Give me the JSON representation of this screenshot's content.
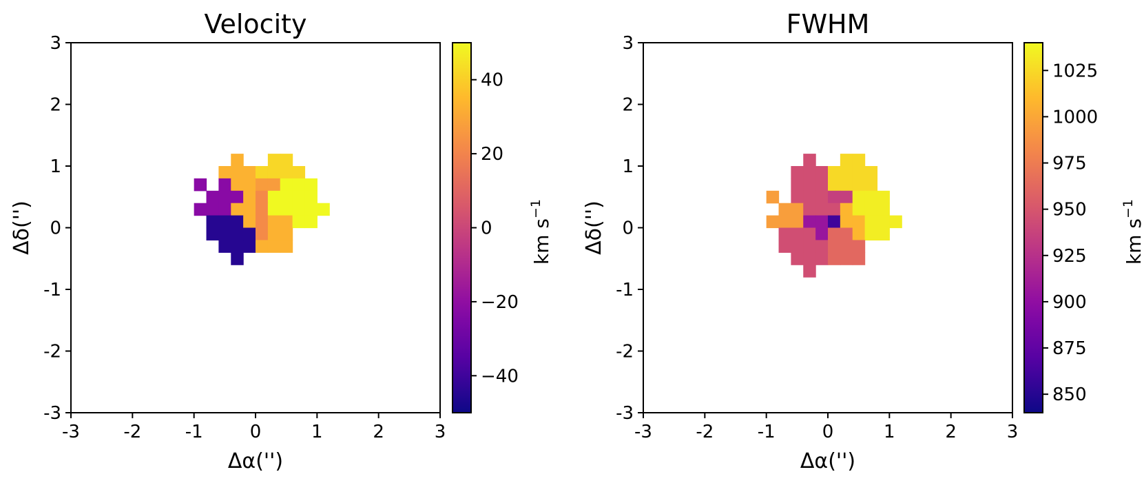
{
  "chart_data": [
    {
      "type": "heatmap",
      "title": "Velocity",
      "xlabel": "Δα('')",
      "ylabel": "Δδ('')",
      "xlim": [
        -3,
        3
      ],
      "ylim": [
        -3,
        3
      ],
      "xticks": [
        "-3",
        "-2",
        "-1",
        "0",
        "1",
        "2",
        "3"
      ],
      "yticks": [
        "-3",
        "-2",
        "-1",
        "0",
        "1",
        "2",
        "3"
      ],
      "pixel_size": 0.2,
      "colormap": "plasma",
      "colorbar": {
        "label": "km s",
        "label_sup": "−1",
        "vmin": -50,
        "vmax": 50,
        "ticks": [
          -40,
          -20,
          0,
          20,
          40
        ],
        "tick_labels": [
          "−40",
          "−20",
          "0",
          "20",
          "40"
        ]
      },
      "cells": [
        [
          -0.3,
          1.1,
          33
        ],
        [
          0.3,
          1.1,
          42
        ],
        [
          0.5,
          1.1,
          42
        ],
        [
          -0.5,
          0.9,
          33
        ],
        [
          -0.3,
          0.9,
          33
        ],
        [
          -0.1,
          0.9,
          33
        ],
        [
          0.1,
          0.9,
          42
        ],
        [
          0.3,
          0.9,
          42
        ],
        [
          0.5,
          0.9,
          42
        ],
        [
          0.7,
          0.9,
          42
        ],
        [
          -0.9,
          0.7,
          -22
        ],
        [
          -0.5,
          0.7,
          -22
        ],
        [
          -0.3,
          0.7,
          33
        ],
        [
          -0.1,
          0.7,
          33
        ],
        [
          0.1,
          0.7,
          27
        ],
        [
          0.3,
          0.7,
          27
        ],
        [
          0.5,
          0.7,
          50
        ],
        [
          0.7,
          0.7,
          50
        ],
        [
          0.9,
          0.7,
          50
        ],
        [
          -0.7,
          0.5,
          -22
        ],
        [
          -0.5,
          0.5,
          -22
        ],
        [
          -0.3,
          0.5,
          -22
        ],
        [
          -0.1,
          0.5,
          33
        ],
        [
          0.1,
          0.5,
          22
        ],
        [
          0.3,
          0.5,
          50
        ],
        [
          0.5,
          0.5,
          50
        ],
        [
          0.7,
          0.5,
          50
        ],
        [
          0.9,
          0.5,
          50
        ],
        [
          -0.9,
          0.3,
          -22
        ],
        [
          -0.7,
          0.3,
          -22
        ],
        [
          -0.5,
          0.3,
          -22
        ],
        [
          -0.3,
          0.3,
          33
        ],
        [
          -0.1,
          0.3,
          33
        ],
        [
          0.1,
          0.3,
          22
        ],
        [
          0.3,
          0.3,
          50
        ],
        [
          0.5,
          0.3,
          50
        ],
        [
          0.7,
          0.3,
          50
        ],
        [
          0.9,
          0.3,
          50
        ],
        [
          1.1,
          0.3,
          50
        ],
        [
          -0.7,
          0.1,
          -45
        ],
        [
          -0.5,
          0.1,
          -45
        ],
        [
          -0.3,
          0.1,
          -45
        ],
        [
          -0.1,
          0.1,
          33
        ],
        [
          0.1,
          0.1,
          22
        ],
        [
          0.3,
          0.1,
          33
        ],
        [
          0.5,
          0.1,
          33
        ],
        [
          0.7,
          0.1,
          50
        ],
        [
          0.9,
          0.1,
          50
        ],
        [
          -0.7,
          -0.1,
          -45
        ],
        [
          -0.5,
          -0.1,
          -45
        ],
        [
          -0.3,
          -0.1,
          -45
        ],
        [
          -0.1,
          -0.1,
          -45
        ],
        [
          0.1,
          -0.1,
          22
        ],
        [
          0.3,
          -0.1,
          33
        ],
        [
          0.5,
          -0.1,
          33
        ],
        [
          -0.5,
          -0.3,
          -45
        ],
        [
          -0.3,
          -0.3,
          -45
        ],
        [
          -0.1,
          -0.3,
          -45
        ],
        [
          0.1,
          -0.3,
          33
        ],
        [
          0.3,
          -0.3,
          33
        ],
        [
          0.5,
          -0.3,
          33
        ],
        [
          -0.3,
          -0.5,
          -45
        ]
      ]
    },
    {
      "type": "heatmap",
      "title": "FWHM",
      "xlabel": "Δα('')",
      "ylabel": "Δδ('')",
      "xlim": [
        -3,
        3
      ],
      "ylim": [
        -3,
        3
      ],
      "xticks": [
        "-3",
        "-2",
        "-1",
        "0",
        "1",
        "2",
        "3"
      ],
      "yticks": [
        "-3",
        "-2",
        "-1",
        "0",
        "1",
        "2",
        "3"
      ],
      "pixel_size": 0.2,
      "colormap": "plasma",
      "colorbar": {
        "label": "km s",
        "label_sup": "−1",
        "vmin": 840,
        "vmax": 1040,
        "ticks": [
          850,
          875,
          900,
          925,
          950,
          975,
          1000,
          1025
        ],
        "tick_labels": [
          "850",
          "875",
          "900",
          "925",
          "950",
          "975",
          "1000",
          "1025"
        ]
      },
      "cells": [
        [
          -0.3,
          1.1,
          945
        ],
        [
          0.3,
          1.1,
          1025
        ],
        [
          0.5,
          1.1,
          1025
        ],
        [
          -0.5,
          0.9,
          945
        ],
        [
          -0.3,
          0.9,
          945
        ],
        [
          -0.1,
          0.9,
          945
        ],
        [
          0.1,
          0.9,
          1025
        ],
        [
          0.3,
          0.9,
          1025
        ],
        [
          0.5,
          0.9,
          1025
        ],
        [
          0.7,
          0.9,
          1025
        ],
        [
          -0.5,
          0.7,
          945
        ],
        [
          -0.3,
          0.7,
          945
        ],
        [
          -0.1,
          0.7,
          945
        ],
        [
          0.1,
          0.7,
          1025
        ],
        [
          0.3,
          0.7,
          1025
        ],
        [
          0.5,
          0.7,
          1025
        ],
        [
          0.7,
          0.7,
          1025
        ],
        [
          -0.9,
          0.5,
          995
        ],
        [
          -0.5,
          0.5,
          945
        ],
        [
          -0.3,
          0.5,
          945
        ],
        [
          -0.1,
          0.5,
          945
        ],
        [
          0.1,
          0.5,
          935
        ],
        [
          0.3,
          0.5,
          935
        ],
        [
          0.5,
          0.5,
          1035
        ],
        [
          0.7,
          0.5,
          1035
        ],
        [
          0.9,
          0.5,
          1035
        ],
        [
          -0.7,
          0.3,
          995
        ],
        [
          -0.5,
          0.3,
          995
        ],
        [
          -0.3,
          0.3,
          945
        ],
        [
          -0.1,
          0.3,
          945
        ],
        [
          0.1,
          0.3,
          945
        ],
        [
          0.3,
          0.3,
          1008
        ],
        [
          0.5,
          0.3,
          1035
        ],
        [
          0.7,
          0.3,
          1035
        ],
        [
          0.9,
          0.3,
          1035
        ],
        [
          -0.9,
          0.1,
          995
        ],
        [
          -0.7,
          0.1,
          995
        ],
        [
          -0.5,
          0.1,
          995
        ],
        [
          -0.3,
          0.1,
          905
        ],
        [
          -0.1,
          0.1,
          905
        ],
        [
          0.1,
          0.1,
          860
        ],
        [
          0.3,
          0.1,
          1008
        ],
        [
          0.5,
          0.1,
          1008
        ],
        [
          0.7,
          0.1,
          1035
        ],
        [
          0.9,
          0.1,
          1035
        ],
        [
          1.1,
          0.1,
          1035
        ],
        [
          -0.7,
          -0.1,
          945
        ],
        [
          -0.5,
          -0.1,
          945
        ],
        [
          -0.3,
          -0.1,
          945
        ],
        [
          -0.1,
          -0.1,
          905
        ],
        [
          0.1,
          -0.1,
          962
        ],
        [
          0.3,
          -0.1,
          962
        ],
        [
          0.5,
          -0.1,
          1008
        ],
        [
          0.7,
          -0.1,
          1035
        ],
        [
          0.9,
          -0.1,
          1035
        ],
        [
          -0.7,
          -0.3,
          945
        ],
        [
          -0.5,
          -0.3,
          945
        ],
        [
          -0.3,
          -0.3,
          945
        ],
        [
          -0.1,
          -0.3,
          945
        ],
        [
          0.1,
          -0.3,
          962
        ],
        [
          0.3,
          -0.3,
          962
        ],
        [
          0.5,
          -0.3,
          962
        ],
        [
          -0.5,
          -0.5,
          945
        ],
        [
          -0.3,
          -0.5,
          945
        ],
        [
          -0.1,
          -0.5,
          945
        ],
        [
          0.1,
          -0.5,
          962
        ],
        [
          0.3,
          -0.5,
          962
        ],
        [
          0.5,
          -0.5,
          962
        ],
        [
          -0.3,
          -0.7,
          945
        ]
      ]
    }
  ]
}
